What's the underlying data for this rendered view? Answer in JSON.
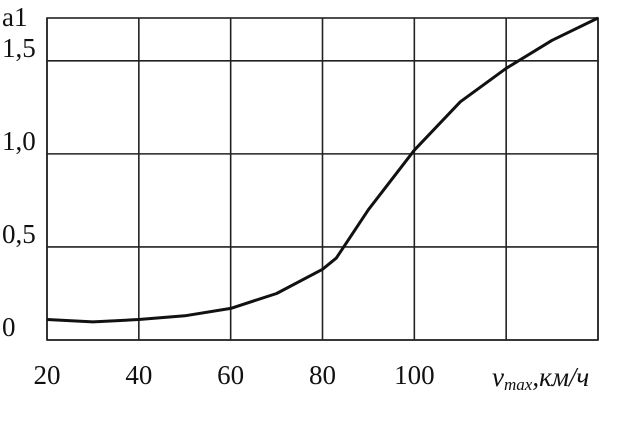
{
  "chart_data": {
    "type": "line",
    "y_label": "a1",
    "x_label": "v",
    "x_label_subscript": "max",
    "x_label_unit": ",км/ч",
    "x": [
      20,
      30,
      40,
      50,
      60,
      70,
      80,
      83,
      90,
      100,
      110,
      120,
      130,
      140
    ],
    "series": [
      {
        "color": "#111111",
        "values": [
          0.11,
          0.097,
          0.11,
          0.13,
          0.17,
          0.25,
          0.38,
          0.44,
          0.7,
          1.02,
          1.28,
          1.46,
          1.61,
          1.73
        ]
      }
    ],
    "xlim": [
      20,
      140
    ],
    "xticks": [
      20,
      40,
      60,
      80,
      100,
      {
        "value": 120,
        "label": null
      },
      {
        "value": 140,
        "label": null
      }
    ],
    "ylim": [
      0,
      1.73
    ],
    "yticks": [
      {
        "value": 0,
        "label": "0"
      },
      {
        "value": 0.5,
        "label": "0,5"
      },
      {
        "value": 1.0,
        "label": "1,0"
      },
      {
        "value": 1.5,
        "label": "1,5"
      }
    ],
    "grid": true
  }
}
